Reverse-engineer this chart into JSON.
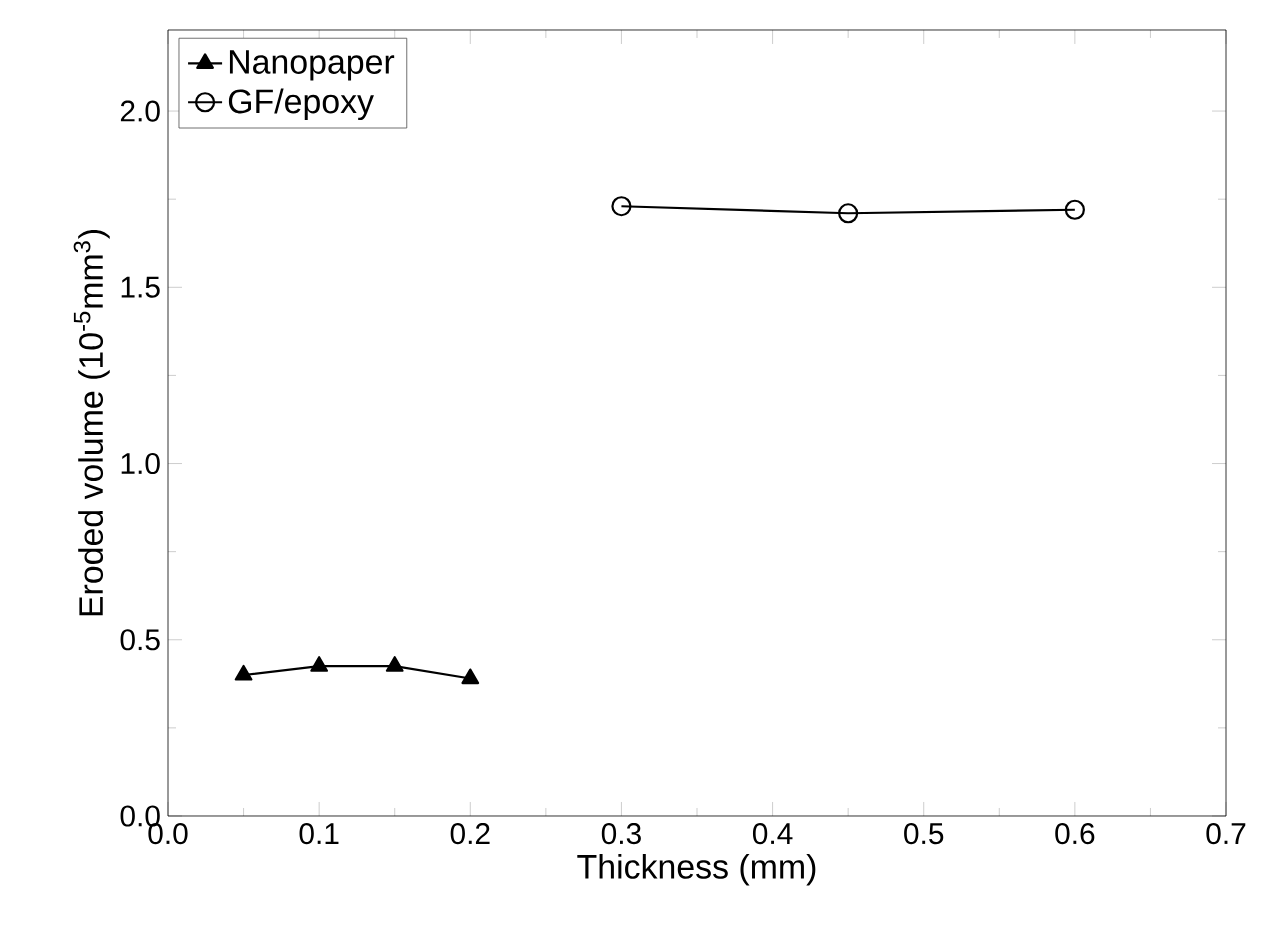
{
  "chart_data": {
    "type": "line",
    "xlabel": "Thickness (mm)",
    "ylabel": "Eroded volume (10$^{-5}$mm$^{3}$)",
    "xlim": [
      0.0,
      0.7
    ],
    "ylim": [
      0.0,
      2.23
    ],
    "xticks": [
      {
        "value": 0.0,
        "label": "0.0"
      },
      0.1,
      0.2,
      0.3,
      0.4,
      0.5,
      0.6,
      0.7
    ],
    "yticks": [
      {
        "value": 0.0,
        "label": "0.0"
      },
      0.5,
      {
        "value": 1.0,
        "label": "1.0"
      },
      1.5,
      {
        "value": 2.0,
        "label": "2.0"
      }
    ],
    "legend": "top left",
    "grid": false,
    "line_style": "solid",
    "series": [
      {
        "name": "Nanopaper",
        "color": "#000000",
        "marker": "triangle",
        "x": [
          0.05,
          0.1,
          0.15,
          0.2
        ],
        "values": [
          0.4,
          0.425,
          0.425,
          0.39
        ]
      },
      {
        "name": "GF/epoxy",
        "color": "#000000",
        "marker": "circle",
        "x": [
          0.3,
          0.45,
          0.6
        ],
        "values": [
          1.73,
          1.71,
          1.72
        ]
      }
    ]
  }
}
